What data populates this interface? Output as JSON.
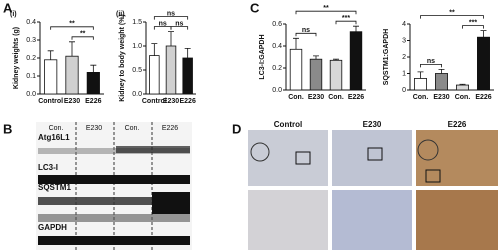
{
  "chart_data": [
    {
      "type": "bar",
      "panel": "A",
      "subpanel": "(i)",
      "ylabel": "Kidney weights (g)",
      "categories": [
        "Control",
        "E230",
        "E226"
      ],
      "values": [
        0.19,
        0.21,
        0.12
      ],
      "errors": [
        0.05,
        0.08,
        0.04
      ],
      "colors": [
        "#ffffff",
        "#d0d0d0",
        "#111111"
      ],
      "ylim": [
        0,
        0.4
      ],
      "yticks": [
        {
          "value": 0,
          "label": "0.0"
        },
        0.1,
        0.2,
        0.3,
        0.4
      ],
      "annotations": [
        {
          "text": "**",
          "between": [
            1,
            2
          ]
        },
        {
          "text": "**",
          "between": [
            0,
            2
          ]
        }
      ]
    },
    {
      "type": "bar",
      "subpanel": "(ii)",
      "ylabel": "Kidney to body weight (%)",
      "categories": [
        "Control",
        "E230",
        "E226"
      ],
      "values": [
        0.8,
        1.0,
        0.75
      ],
      "errors": [
        0.25,
        0.3,
        0.2
      ],
      "colors": [
        "#ffffff",
        "#d0d0d0",
        "#111111"
      ],
      "ylim": [
        0,
        1.5
      ],
      "yticks": [
        {
          "value": 0,
          "label": "0.0"
        },
        0.5,
        {
          "value": 1,
          "label": "1.0"
        },
        1.5
      ],
      "annotations": [
        {
          "text": "ns",
          "between": [
            0,
            1
          ]
        },
        {
          "text": "ns",
          "between": [
            1,
            2
          ]
        },
        {
          "text": "ns",
          "between": [
            0,
            2
          ]
        }
      ]
    },
    {
      "type": "bar",
      "panel": "C",
      "ylabel": "LC3-I:GAPDH",
      "categories": [
        "Con.",
        "E230",
        "Con.",
        "E226"
      ],
      "values": [
        0.37,
        0.28,
        0.27,
        0.53
      ],
      "errors": [
        0.1,
        0.03,
        0.01,
        0.05
      ],
      "colors": [
        "#ffffff",
        "#8a8a8a",
        "#d8d8d8",
        "#111111"
      ],
      "ylim": [
        0,
        0.6
      ],
      "yticks": [
        {
          "value": 0,
          "label": "0.0"
        },
        0.2,
        0.4,
        0.6
      ],
      "annotations": [
        {
          "text": "ns",
          "between": [
            0,
            1
          ]
        },
        {
          "text": "***",
          "between": [
            2,
            3
          ]
        },
        {
          "text": "**",
          "between": [
            0,
            3
          ]
        }
      ]
    },
    {
      "type": "bar",
      "ylabel": "SQSTM1:GAPDH",
      "categories": [
        "Con.",
        "E230",
        "Con.",
        "E226"
      ],
      "values": [
        0.7,
        1.0,
        0.3,
        3.2
      ],
      "errors": [
        0.4,
        0.25,
        0.05,
        0.4
      ],
      "colors": [
        "#ffffff",
        "#8a8a8a",
        "#d8d8d8",
        "#111111"
      ],
      "ylim": [
        0,
        4
      ],
      "yticks": [
        0,
        1,
        2,
        3,
        4
      ],
      "annotations": [
        {
          "text": "ns",
          "between": [
            0,
            1
          ]
        },
        {
          "text": "***",
          "between": [
            2,
            3
          ]
        },
        {
          "text": "**",
          "between": [
            0,
            3
          ]
        }
      ]
    }
  ],
  "blot": {
    "panel": "B",
    "lanes": [
      "Con.",
      "E230",
      "Con.",
      "E226"
    ],
    "rows": [
      "Atg16L1",
      "LC3-I",
      "SQSTM1",
      "GAPDH"
    ]
  },
  "histology": {
    "panel": "D",
    "columns": [
      "Control",
      "E230",
      "E226"
    ]
  }
}
